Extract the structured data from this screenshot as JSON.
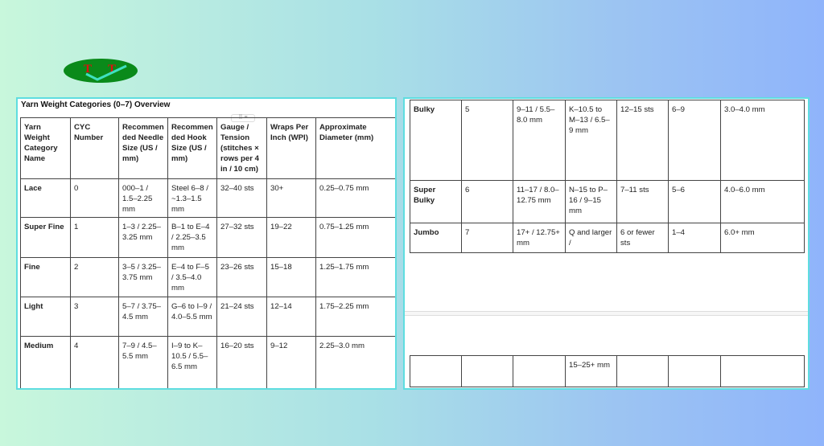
{
  "logo": {
    "text": "T-T",
    "colors": {
      "ellipse": "#0a8a1a",
      "letters": "#e01010",
      "check": "#3fe0c0"
    }
  },
  "document": {
    "title": "Yarn Weight Categories (0–7) Overview",
    "table": {
      "headers": [
        "Yarn Weight Category Name",
        "CYC Number",
        "Recommended Needle Size (US / mm)",
        "Recommended Hook Size (US / mm)",
        "Gauge / Tension (stitches × rows per 4 in / 10 cm)",
        "Wraps Per Inch (WPI)",
        "Approximate Diameter (mm)"
      ],
      "rows": [
        [
          "Lace",
          "0",
          "000–1 / 1.5–2.25 mm",
          "Steel 6–8 / ~1.3–1.5 mm",
          "32–40 sts",
          "30+",
          "0.25–0.75 mm"
        ],
        [
          "Super Fine",
          "1",
          "1–3 / 2.25–3.25 mm",
          "B–1 to E–4 / 2.25–3.5 mm",
          "27–32 sts",
          "19–22",
          "0.75–1.25 mm"
        ],
        [
          "Fine",
          "2",
          "3–5 / 3.25–3.75 mm",
          "E–4 to F–5 / 3.5–4.0 mm",
          "23–26 sts",
          "15–18",
          "1.25–1.75 mm"
        ],
        [
          "Light",
          "3",
          "5–7 / 3.75–4.5 mm",
          "G–6 to I–9 / 4.0–5.5 mm",
          "21–24 sts",
          "12–14",
          "1.75–2.25 mm"
        ],
        [
          "Medium",
          "4",
          "7–9 / 4.5–5.5 mm",
          "I–9 to K–10.5 / 5.5–6.5 mm",
          "16–20 sts",
          "9–12",
          "2.25–3.0 mm"
        ],
        [
          "Bulky",
          "5",
          "9–11 / 5.5–8.0 mm",
          "K–10.5 to M–13 / 6.5–9 mm",
          "12–15 sts",
          "6–9",
          "3.0–4.0 mm"
        ],
        [
          "Super Bulky",
          "6",
          "11–17 / 8.0–12.75 mm",
          "N–15 to P–16 / 9–15 mm",
          "7–11 sts",
          "5–6",
          "4.0–6.0 mm"
        ],
        [
          "Jumbo",
          "7",
          "17+ / 12.75+ mm",
          "Q and larger /",
          "6 or fewer sts",
          "1–4",
          "6.0+ mm"
        ],
        [
          "",
          "",
          "",
          "15–25+ mm",
          "",
          "",
          ""
        ]
      ]
    },
    "table_handle_icons": [
      "drag-grid-icon",
      "sort-lines-icon"
    ]
  }
}
